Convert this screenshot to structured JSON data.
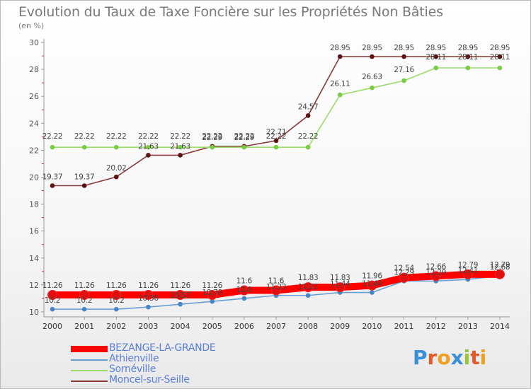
{
  "title": "Evolution du Taux de Taxe Foncière sur les Propriétés Non Bâties",
  "subtitle": "(en %)",
  "logo": {
    "letters": [
      "P",
      "r",
      "o",
      "x",
      "i",
      "t",
      "i"
    ],
    "colors": [
      "#3a8fd6",
      "#e05a2a",
      "#f0a020",
      "#3a8fd6",
      "#9bc33a",
      "#e05a2a",
      "#f0a020"
    ]
  },
  "chart_data": {
    "type": "line",
    "title": "Evolution du Taux de Taxe Foncière sur les Propriétés Non Bâties",
    "ylabel": "(en %)",
    "xlabel": "",
    "categories": [
      "2000",
      "2001",
      "2002",
      "2003",
      "2004",
      "2005",
      "2006",
      "2007",
      "2008",
      "2009",
      "2010",
      "2011",
      "2012",
      "2013",
      "2014"
    ],
    "ylim": [
      10,
      30
    ],
    "yticks": [
      "10",
      "12",
      "14",
      "16",
      "18",
      "20",
      "22",
      "24",
      "26",
      "28",
      "30"
    ],
    "grid": false,
    "series": [
      {
        "name": "BEZANGE-LA-GRANDE",
        "color": "#ff0000",
        "marker": "#e01010",
        "bold": true,
        "values": [
          11.26,
          11.26,
          11.26,
          11.26,
          11.26,
          11.26,
          11.6,
          11.6,
          11.83,
          11.83,
          11.96,
          12.54,
          12.66,
          12.79,
          12.79
        ],
        "labels": [
          "11.26",
          "11.26",
          "11.26",
          "11.26",
          "11.26",
          "11.26",
          "11.6",
          "11.6",
          "11.83",
          "11.83",
          "11.96",
          "12.54",
          "12.66",
          "12.79",
          "12.79"
        ]
      },
      {
        "name": "Athienville",
        "color": "#6a9fd6",
        "marker": "#4a84c8",
        "bold": false,
        "values": [
          10.2,
          10.2,
          10.2,
          10.36,
          10.57,
          10.78,
          11.0,
          11.22,
          11.22,
          11.44,
          11.44,
          12.29,
          12.29,
          12.41,
          12.68
        ],
        "labels": [
          "10.2",
          "10.2",
          "10.2",
          "10.36",
          "10.57",
          "10.78",
          "11.0",
          "11.22",
          "11.22",
          "11.44",
          "11.44",
          "12.29",
          "12.29",
          "12.41",
          "12.68"
        ]
      },
      {
        "name": "Sornéville",
        "color": "#99dd66",
        "marker": "#77cc44",
        "bold": false,
        "values": [
          22.22,
          22.22,
          22.22,
          22.22,
          22.22,
          22.22,
          22.22,
          22.22,
          22.22,
          26.11,
          26.63,
          27.16,
          28.11,
          28.11,
          28.11
        ],
        "labels": [
          "22.22",
          "22.22",
          "22.22",
          "22.22",
          "22.22",
          "22.22",
          "22.22",
          "22.22",
          "22.22",
          "26.11",
          "26.63",
          "27.16",
          "28.11",
          "28.11",
          "28.11"
        ]
      },
      {
        "name": "Moncel-sur-Seille",
        "color": "#8a3a3a",
        "marker": "#5a1414",
        "bold": false,
        "values": [
          19.37,
          19.37,
          20.02,
          21.63,
          21.63,
          22.29,
          22.29,
          22.71,
          24.57,
          28.95,
          28.95,
          28.95,
          28.95,
          28.95,
          28.95
        ],
        "labels": [
          "19.37",
          "19.37",
          "20.02",
          "21.63",
          "21.63",
          "22.29",
          "22.29",
          "22.71",
          "24.57",
          "28.95",
          "28.95",
          "28.95",
          "28.95",
          "28.95",
          "28.95"
        ]
      }
    ]
  }
}
